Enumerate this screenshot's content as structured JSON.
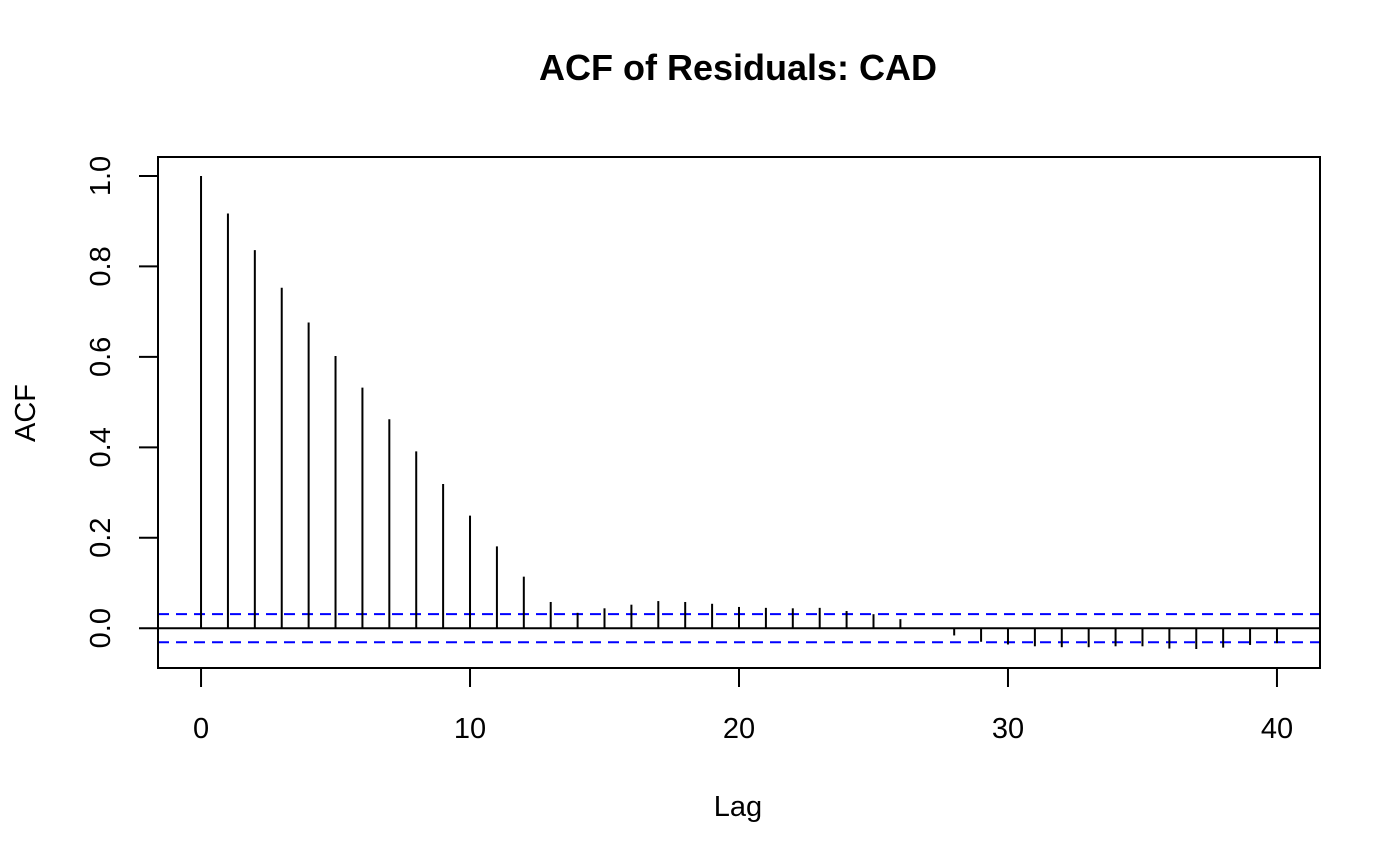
{
  "chart_data": {
    "type": "bar",
    "subtype": "acf-spike",
    "title": "ACF of Residuals: CAD",
    "xlabel": "Lag",
    "ylabel": "ACF",
    "xlim": [
      -1.6,
      41.6
    ],
    "ylim": [
      -0.088,
      1.042
    ],
    "x_ticks": [
      0,
      10,
      20,
      30,
      40
    ],
    "x_tick_labels": [
      "0",
      "10",
      "20",
      "30",
      "40"
    ],
    "y_ticks": [
      0.0,
      0.2,
      0.4,
      0.6,
      0.8,
      1.0
    ],
    "y_tick_labels": [
      "0.0",
      "0.2",
      "0.4",
      "0.6",
      "0.8",
      "1.0"
    ],
    "lags": [
      0,
      1,
      2,
      3,
      4,
      5,
      6,
      7,
      8,
      9,
      10,
      11,
      12,
      13,
      14,
      15,
      16,
      17,
      18,
      19,
      20,
      21,
      22,
      23,
      24,
      25,
      26,
      27,
      28,
      29,
      30,
      31,
      32,
      33,
      34,
      35,
      36,
      37,
      38,
      39,
      40
    ],
    "values": [
      1.0,
      0.917,
      0.836,
      0.753,
      0.676,
      0.602,
      0.532,
      0.462,
      0.391,
      0.319,
      0.249,
      0.181,
      0.114,
      0.058,
      0.034,
      0.044,
      0.052,
      0.06,
      0.058,
      0.054,
      0.047,
      0.045,
      0.044,
      0.045,
      0.038,
      0.031,
      0.02,
      0.0,
      -0.016,
      -0.03,
      -0.036,
      -0.04,
      -0.042,
      -0.042,
      -0.04,
      -0.04,
      -0.045,
      -0.046,
      -0.043,
      -0.037,
      -0.033
    ],
    "confidence_band": 0.031,
    "colors": {
      "spikes": "#000000",
      "confidence_lines": "#0000ff",
      "zero_line": "#000000",
      "frame": "#000000"
    },
    "grid": false,
    "legend": "none"
  }
}
